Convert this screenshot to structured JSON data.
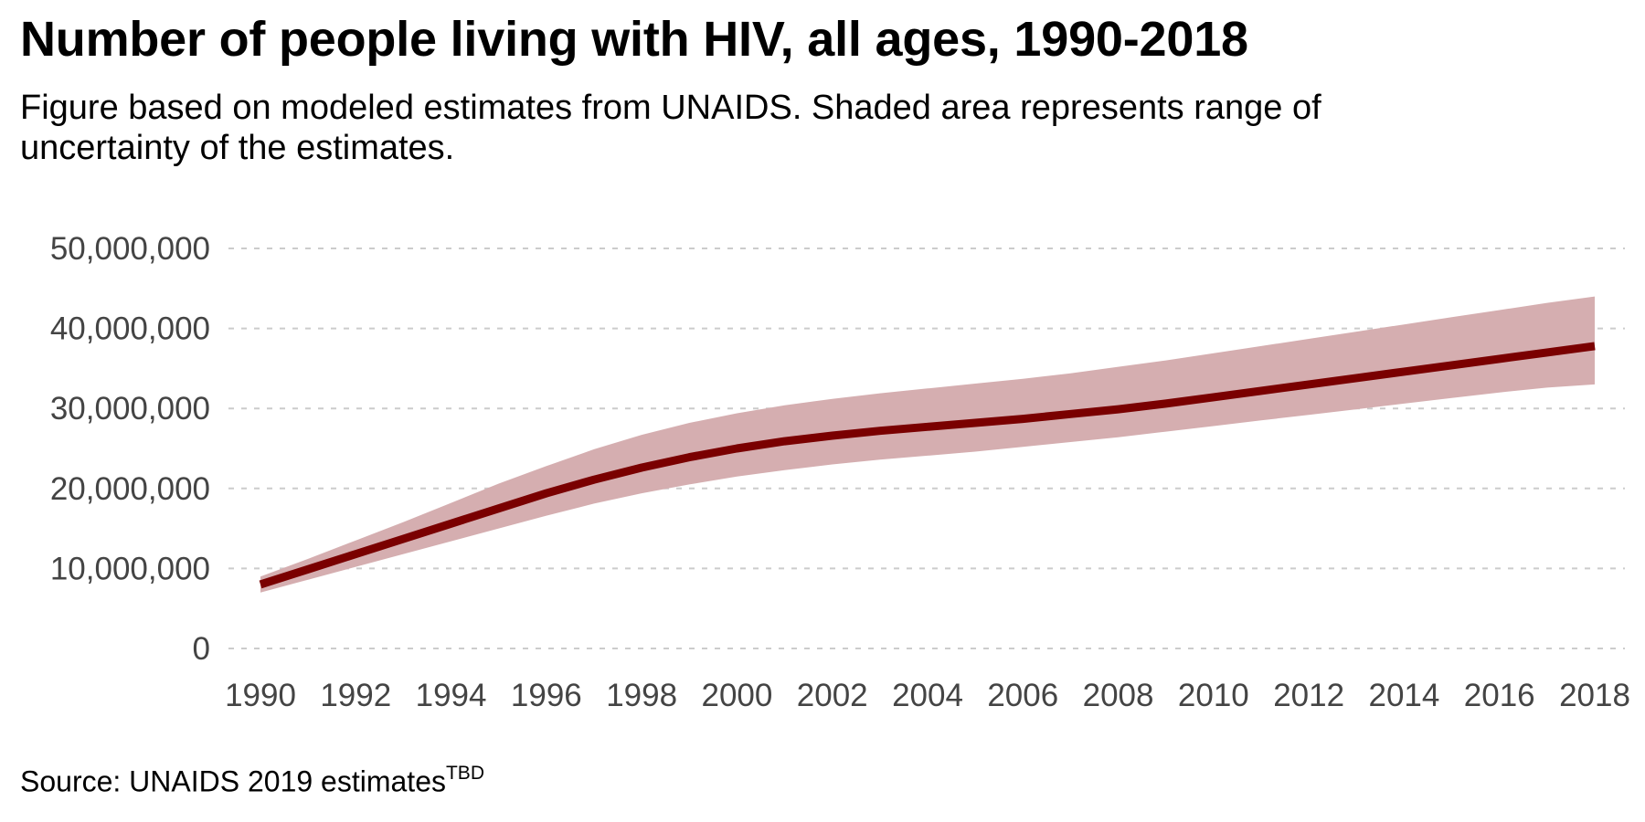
{
  "title": "Number of people living with HIV, all ages, 1990-2018",
  "subtitle": "Figure based on modeled estimates from UNAIDS. Shaded area represents range of uncertainty of the estimates.",
  "source": {
    "text": "Source: UNAIDS 2019  estimates",
    "superscript": "TBD"
  },
  "colors": {
    "line": "#7a0000",
    "band": "#d5aeb0",
    "grid": "#cccccc",
    "tick_text": "#444444"
  },
  "chart_data": {
    "type": "line",
    "title": "Number of people living with HIV, all ages, 1990-2018",
    "xlabel": "",
    "ylabel": "",
    "xlim": [
      1990,
      2018
    ],
    "ylim": [
      0,
      50000000
    ],
    "grid": "horizontal dashed",
    "x_ticks": [
      1990,
      1992,
      1994,
      1996,
      1998,
      2000,
      2002,
      2004,
      2006,
      2008,
      2010,
      2012,
      2014,
      2016,
      2018
    ],
    "y_ticks": [
      0,
      10000000,
      20000000,
      30000000,
      40000000,
      50000000
    ],
    "y_tick_labels": [
      "0",
      "10,000,000",
      "20,000,000",
      "30,000,000",
      "40,000,000",
      "50,000,000"
    ],
    "x": [
      1990,
      1991,
      1992,
      1993,
      1994,
      1995,
      1996,
      1997,
      1998,
      1999,
      2000,
      2001,
      2002,
      2003,
      2004,
      2005,
      2006,
      2007,
      2008,
      2009,
      2010,
      2011,
      2012,
      2013,
      2014,
      2015,
      2016,
      2017,
      2018
    ],
    "series": [
      {
        "values": [
          8000000,
          9900000,
          11800000,
          13700000,
          15600000,
          17500000,
          19400000,
          21100000,
          22600000,
          23900000,
          25000000,
          25900000,
          26600000,
          27200000,
          27700000,
          28200000,
          28700000,
          29300000,
          29900000,
          30600000,
          31400000,
          32200000,
          33000000,
          33800000,
          34600000,
          35400000,
          36200000,
          37000000,
          37800000
        ],
        "lower": [
          7000000,
          8600000,
          10200000,
          11800000,
          13400000,
          15000000,
          16600000,
          18100000,
          19400000,
          20500000,
          21500000,
          22300000,
          23000000,
          23600000,
          24100000,
          24600000,
          25200000,
          25800000,
          26400000,
          27100000,
          27800000,
          28500000,
          29200000,
          29900000,
          30600000,
          31300000,
          32000000,
          32600000,
          33000000
        ],
        "upper": [
          9000000,
          11200000,
          13500000,
          15800000,
          18200000,
          20600000,
          22800000,
          24900000,
          26700000,
          28200000,
          29400000,
          30400000,
          31200000,
          31900000,
          32500000,
          33100000,
          33700000,
          34400000,
          35200000,
          36000000,
          36900000,
          37800000,
          38700000,
          39600000,
          40500000,
          41400000,
          42300000,
          43200000,
          44000000
        ]
      }
    ]
  }
}
